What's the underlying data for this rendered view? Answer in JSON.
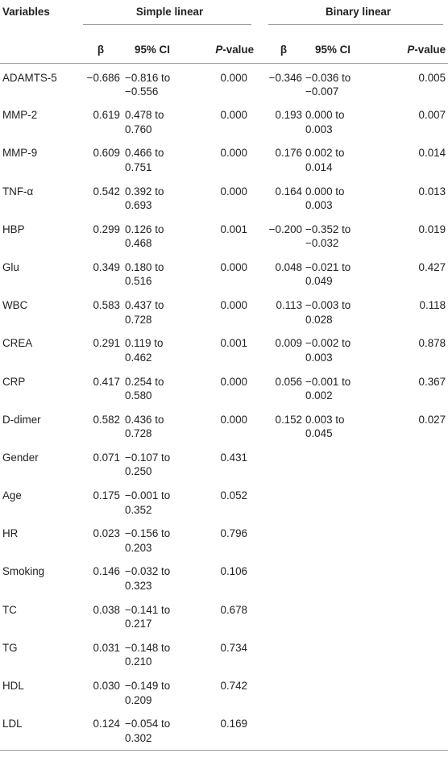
{
  "headers": {
    "variables": "Variables",
    "simple_group": "Simple linear",
    "binary_group": "Binary linear",
    "beta": "β",
    "ci": "95% CI",
    "p_italic": "P",
    "p_rest": "-value"
  },
  "rows": [
    {
      "name": "ADAMTS-5",
      "s_beta": "−0.686",
      "s_ci1": "−0.816 to",
      "s_ci2": "−0.556",
      "s_p": "0.000",
      "b_beta": "−0.346",
      "b_ci1": "−0.036 to",
      "b_ci2": "−0.007",
      "b_p": "0.005"
    },
    {
      "name": "MMP-2",
      "s_beta": "0.619",
      "s_ci1": "0.478 to",
      "s_ci2": "0.760",
      "s_p": "0.000",
      "b_beta": "0.193",
      "b_ci1": "0.000 to",
      "b_ci2": "0.003",
      "b_p": "0.007"
    },
    {
      "name": "MMP-9",
      "s_beta": "0.609",
      "s_ci1": "0.466 to",
      "s_ci2": "0.751",
      "s_p": "0.000",
      "b_beta": "0.176",
      "b_ci1": "0.002 to",
      "b_ci2": "0.014",
      "b_p": "0.014"
    },
    {
      "name": "TNF-α",
      "s_beta": "0.542",
      "s_ci1": "0.392 to",
      "s_ci2": "0.693",
      "s_p": "0.000",
      "b_beta": "0.164",
      "b_ci1": "0.000 to",
      "b_ci2": "0.003",
      "b_p": "0.013"
    },
    {
      "name": "HBP",
      "s_beta": "0.299",
      "s_ci1": "0.126 to",
      "s_ci2": "0.468",
      "s_p": "0.001",
      "b_beta": "−0.200",
      "b_ci1": "−0.352 to",
      "b_ci2": "−0.032",
      "b_p": "0.019"
    },
    {
      "name": "Glu",
      "s_beta": "0.349",
      "s_ci1": "0.180 to",
      "s_ci2": "0.516",
      "s_p": "0.000",
      "b_beta": "0.048",
      "b_ci1": "−0.021 to",
      "b_ci2": "0.049",
      "b_p": "0.427"
    },
    {
      "name": "WBC",
      "s_beta": "0.583",
      "s_ci1": "0.437 to",
      "s_ci2": "0.728",
      "s_p": "0.000",
      "b_beta": "0.113",
      "b_ci1": "−0.003 to",
      "b_ci2": "0.028",
      "b_p": "0.118"
    },
    {
      "name": "CREA",
      "s_beta": "0.291",
      "s_ci1": "0.119 to",
      "s_ci2": "0.462",
      "s_p": "0.001",
      "b_beta": "0.009",
      "b_ci1": "−0.002 to",
      "b_ci2": "0.003",
      "b_p": "0.878"
    },
    {
      "name": "CRP",
      "s_beta": "0.417",
      "s_ci1": "0.254 to",
      "s_ci2": "0.580",
      "s_p": "0.000",
      "b_beta": "0.056",
      "b_ci1": "−0.001 to",
      "b_ci2": "0.002",
      "b_p": "0.367"
    },
    {
      "name": "D-dimer",
      "s_beta": "0.582",
      "s_ci1": "0.436 to",
      "s_ci2": "0.728",
      "s_p": "0.000",
      "b_beta": "0.152",
      "b_ci1": "0.003 to",
      "b_ci2": "0.045",
      "b_p": "0.027"
    },
    {
      "name": "Gender",
      "s_beta": "0.071",
      "s_ci1": "−0.107 to",
      "s_ci2": "0.250",
      "s_p": "0.431",
      "b_beta": "",
      "b_ci1": "",
      "b_ci2": "",
      "b_p": ""
    },
    {
      "name": "Age",
      "s_beta": "0.175",
      "s_ci1": "−0.001 to",
      "s_ci2": "0.352",
      "s_p": "0.052",
      "b_beta": "",
      "b_ci1": "",
      "b_ci2": "",
      "b_p": ""
    },
    {
      "name": "HR",
      "s_beta": "0.023",
      "s_ci1": "−0.156 to",
      "s_ci2": "0.203",
      "s_p": "0.796",
      "b_beta": "",
      "b_ci1": "",
      "b_ci2": "",
      "b_p": ""
    },
    {
      "name": "Smoking",
      "s_beta": "0.146",
      "s_ci1": "−0.032 to",
      "s_ci2": "0.323",
      "s_p": "0.106",
      "b_beta": "",
      "b_ci1": "",
      "b_ci2": "",
      "b_p": ""
    },
    {
      "name": "TC",
      "s_beta": "0.038",
      "s_ci1": "−0.141 to",
      "s_ci2": "0.217",
      "s_p": "0.678",
      "b_beta": "",
      "b_ci1": "",
      "b_ci2": "",
      "b_p": ""
    },
    {
      "name": "TG",
      "s_beta": "0.031",
      "s_ci1": "−0.148 to",
      "s_ci2": "0.210",
      "s_p": "0.734",
      "b_beta": "",
      "b_ci1": "",
      "b_ci2": "",
      "b_p": ""
    },
    {
      "name": "HDL",
      "s_beta": "0.030",
      "s_ci1": "−0.149 to",
      "s_ci2": "0.209",
      "s_p": "0.742",
      "b_beta": "",
      "b_ci1": "",
      "b_ci2": "",
      "b_p": ""
    },
    {
      "name": "LDL",
      "s_beta": "0.124",
      "s_ci1": "−0.054 to",
      "s_ci2": "0.302",
      "s_p": "0.169",
      "b_beta": "",
      "b_ci1": "",
      "b_ci2": "",
      "b_p": ""
    }
  ]
}
